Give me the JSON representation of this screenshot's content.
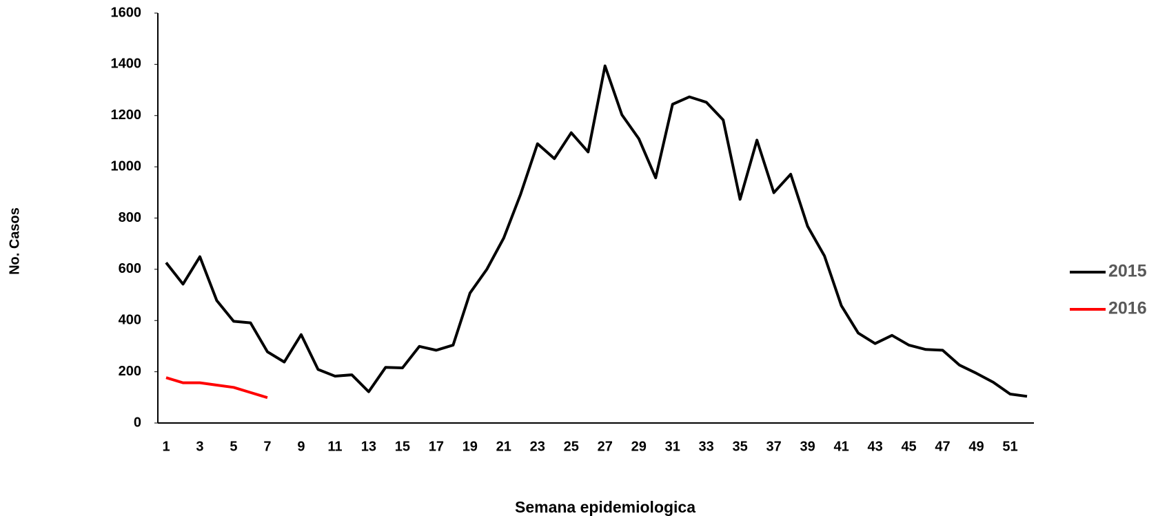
{
  "chart_data": {
    "type": "line",
    "x_label": "Semana epidemiologica",
    "y_label": "No. Casos",
    "categories": [
      "1",
      null,
      "3",
      null,
      "5",
      null,
      "7",
      null,
      "9",
      null,
      "11",
      null,
      "13",
      null,
      "15",
      null,
      "17",
      null,
      "19",
      null,
      "21",
      null,
      "23",
      null,
      "25",
      null,
      "27",
      null,
      "29",
      null,
      "31",
      null,
      "33",
      null,
      "35",
      null,
      "37",
      null,
      "39",
      null,
      "41",
      null,
      "43",
      null,
      "45",
      null,
      "47",
      null,
      "49",
      null,
      "51",
      null
    ],
    "series": [
      {
        "name": "2015",
        "color": "#000000",
        "values": [
          626,
          542,
          649,
          478,
          397,
          391,
          278,
          238,
          345,
          209,
          183,
          188,
          122,
          217,
          215,
          299,
          284,
          304,
          507,
          600,
          722,
          893,
          1090,
          1032,
          1133,
          1058,
          1394,
          1203,
          1110,
          957,
          1244,
          1273,
          1252,
          1183,
          873,
          1104,
          899,
          971,
          768,
          652,
          458,
          351,
          310,
          342,
          304,
          287,
          284,
          226,
          194,
          159,
          113,
          104
        ]
      },
      {
        "name": "2016",
        "color": "#ff0000",
        "values": [
          177,
          157,
          157,
          148,
          139,
          119,
          99,
          null,
          null,
          null,
          null,
          null,
          null,
          null,
          null,
          null,
          null,
          null,
          null,
          null,
          null,
          null,
          null,
          null,
          null,
          null,
          null,
          null,
          null,
          null,
          null,
          null,
          null,
          null,
          null,
          null,
          null,
          null,
          null,
          null,
          null,
          null,
          null,
          null,
          null,
          null,
          null,
          null,
          null,
          null,
          null,
          null
        ]
      }
    ],
    "ylim": [
      0,
      1600
    ],
    "yticks": [
      0,
      200,
      400,
      600,
      800,
      1000,
      1200,
      1400,
      1600
    ],
    "grid": false,
    "legend": "right"
  }
}
